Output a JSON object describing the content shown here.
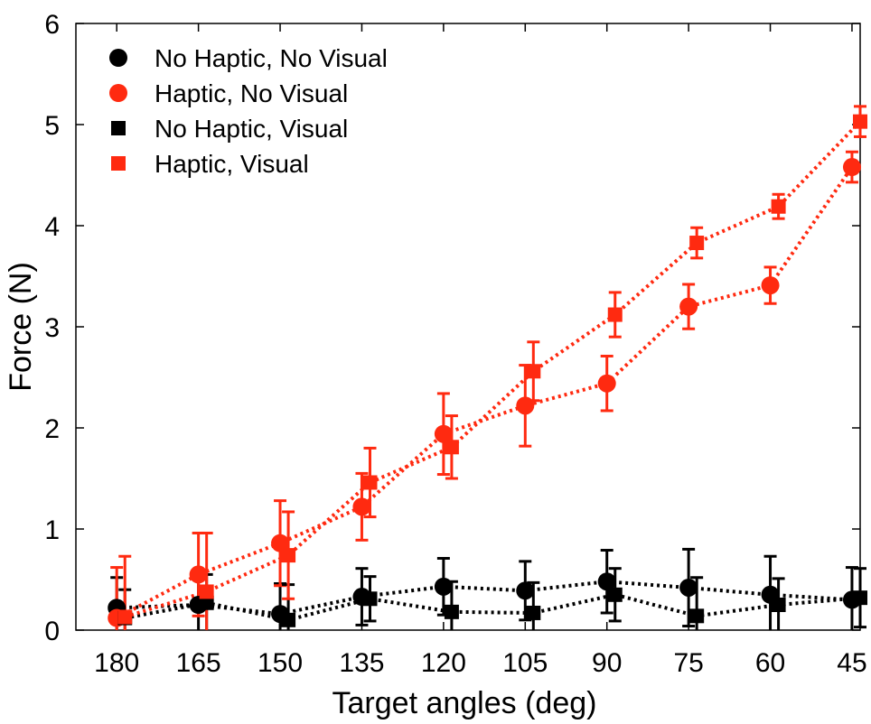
{
  "chart_data": {
    "type": "line",
    "title": "",
    "xlabel": "Target angles (deg)",
    "ylabel": "Force (N)",
    "x_categories": [
      "180",
      "165",
      "150",
      "135",
      "120",
      "105",
      "90",
      "75",
      "60",
      "45"
    ],
    "x_reversed": true,
    "xlim": [
      187.5,
      43.5
    ],
    "ylim": [
      0,
      6
    ],
    "yticks": [
      0,
      1,
      2,
      3,
      4,
      5,
      6
    ],
    "grid": false,
    "legend_position": "top-left",
    "line_style": "dotted",
    "series": [
      {
        "name": "No Haptic, No Visual",
        "color": "#000000",
        "marker": "circle",
        "x": [
          180,
          165,
          150,
          135,
          120,
          105,
          90,
          75,
          60,
          45
        ],
        "y": [
          0.22,
          0.25,
          0.16,
          0.33,
          0.43,
          0.39,
          0.48,
          0.42,
          0.35,
          0.3
        ],
        "error": [
          0.3,
          0.3,
          0.3,
          0.28,
          0.28,
          0.29,
          0.31,
          0.38,
          0.38,
          0.32
        ]
      },
      {
        "name": "Haptic, No Visual",
        "color": "#ff2a10",
        "marker": "circle",
        "x": [
          180,
          165,
          150,
          135,
          120,
          105,
          90,
          75,
          60,
          45
        ],
        "y": [
          0.12,
          0.55,
          0.86,
          1.22,
          1.94,
          2.22,
          2.44,
          3.2,
          3.41,
          4.58
        ],
        "error": [
          0.5,
          0.41,
          0.42,
          0.33,
          0.4,
          0.4,
          0.27,
          0.22,
          0.18,
          0.15
        ]
      },
      {
        "name": "No Haptic, Visual",
        "color": "#000000",
        "marker": "square",
        "x": [
          178.5,
          163.5,
          148.5,
          133.5,
          118.5,
          103.5,
          88.5,
          73.5,
          58.5,
          43.5
        ],
        "y": [
          0.12,
          0.27,
          0.1,
          0.31,
          0.18,
          0.17,
          0.35,
          0.14,
          0.25,
          0.32
        ],
        "error": [
          0.28,
          0.28,
          0.35,
          0.22,
          0.3,
          0.3,
          0.26,
          0.38,
          0.26,
          0.29
        ]
      },
      {
        "name": "Haptic, Visual",
        "color": "#ff2a10",
        "marker": "square",
        "x": [
          178.5,
          163.5,
          148.5,
          133.5,
          118.5,
          103.5,
          88.5,
          73.5,
          58.5,
          43.5
        ],
        "y": [
          0.13,
          0.38,
          0.74,
          1.46,
          1.81,
          2.56,
          3.12,
          3.83,
          4.19,
          5.03
        ],
        "error": [
          0.6,
          0.58,
          0.43,
          0.34,
          0.31,
          0.29,
          0.22,
          0.15,
          0.12,
          0.15
        ]
      }
    ]
  }
}
